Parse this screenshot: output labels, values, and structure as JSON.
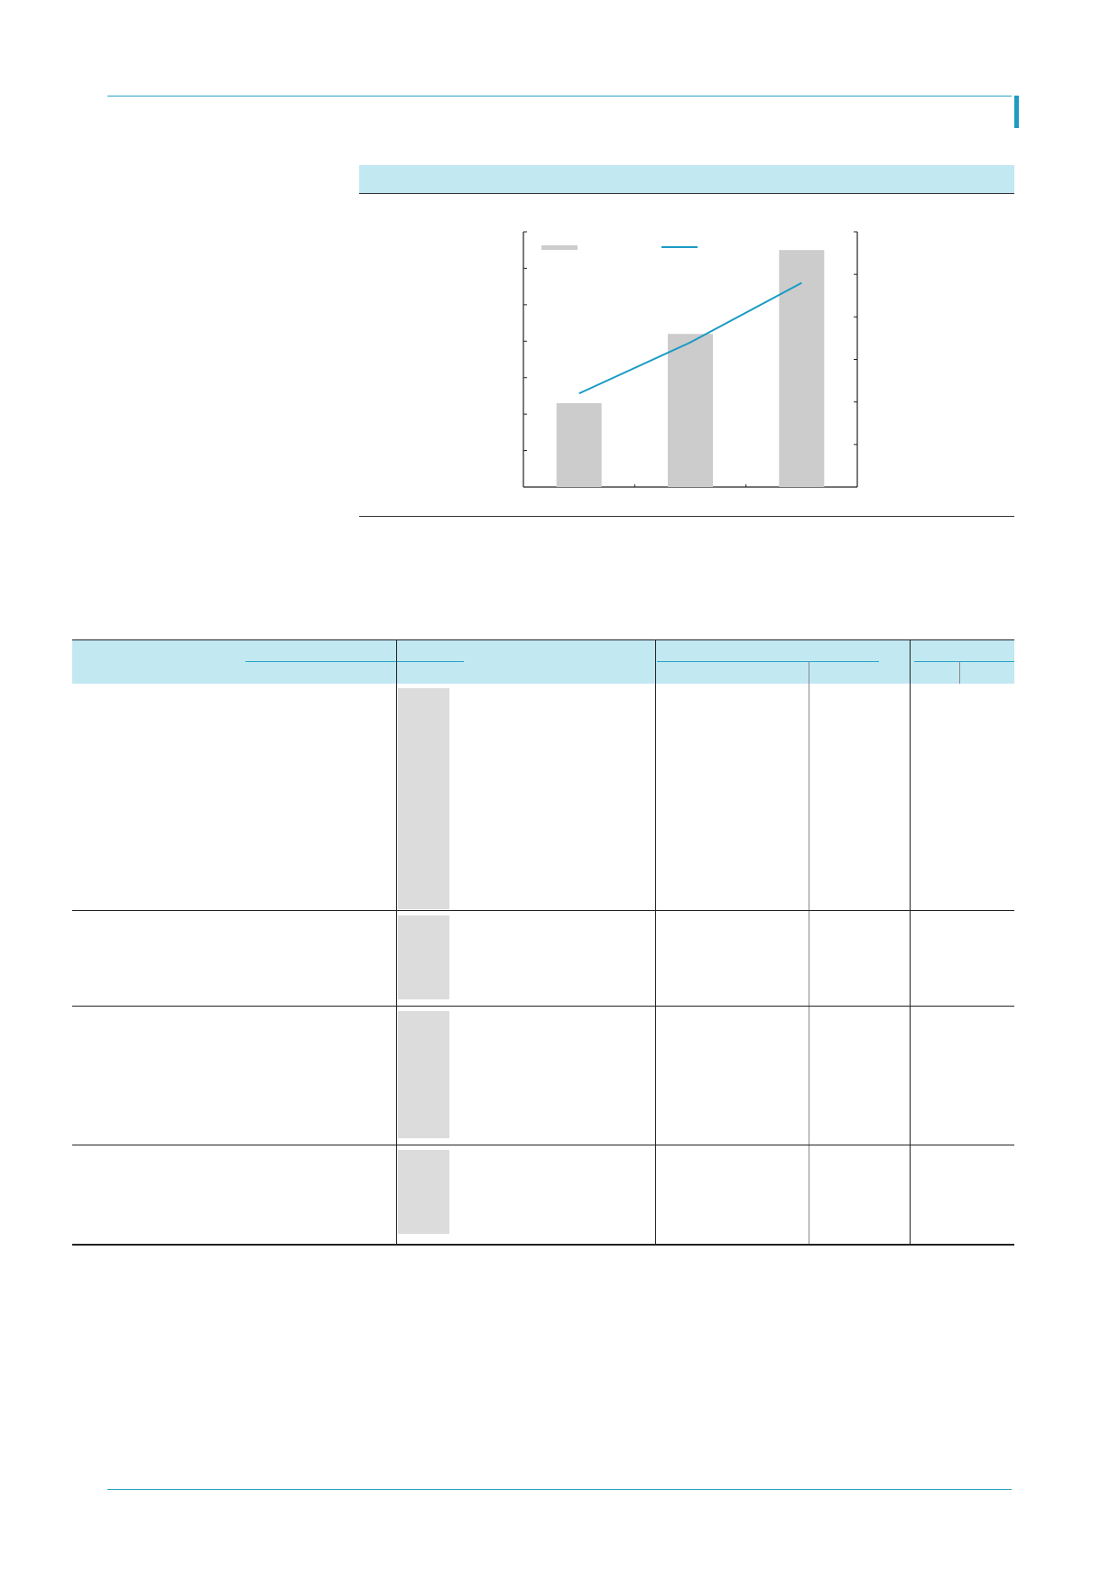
{
  "page": {
    "header_rule_color": "#29a3c4",
    "accent_color": "#1d9bc3",
    "band_color": "#c2e8f2"
  },
  "chart_data": {
    "type": "bar",
    "categories": [
      "",
      "",
      ""
    ],
    "series": [
      {
        "kind": "bar",
        "color": "#cccccc",
        "values": [
          2.3,
          4.2,
          6.5
        ]
      },
      {
        "kind": "line",
        "color": "#1a9bc4",
        "values": [
          2.2,
          3.4,
          4.8
        ]
      }
    ],
    "ylim_left": [
      0,
      7
    ],
    "ylim_right": [
      0,
      6
    ],
    "legend": "top-left",
    "grid": false
  },
  "table": {
    "header_row_1": [
      "",
      "",
      "",
      ""
    ],
    "header_row_2": [
      "",
      "",
      "",
      "",
      "",
      ""
    ],
    "rows": [
      {
        "cells": [
          "",
          "",
          "",
          "",
          "",
          ""
        ]
      },
      {
        "cells": [
          "",
          "",
          "",
          "",
          "",
          ""
        ]
      },
      {
        "cells": [
          "",
          "",
          "",
          "",
          "",
          ""
        ]
      },
      {
        "cells": [
          "",
          "",
          "",
          "",
          "",
          ""
        ]
      }
    ]
  }
}
